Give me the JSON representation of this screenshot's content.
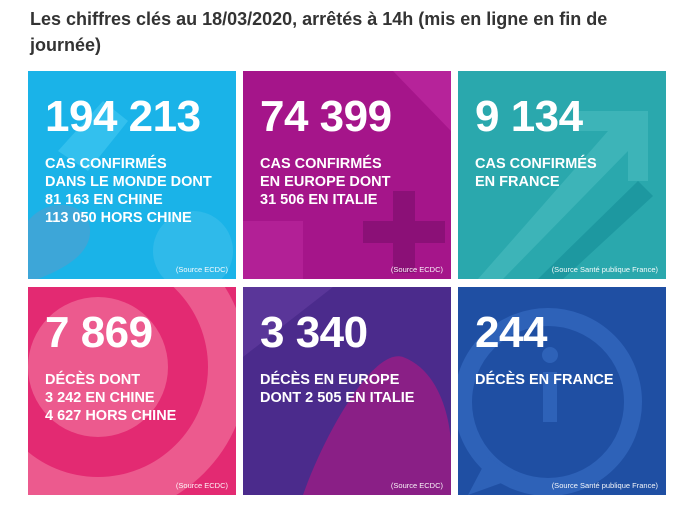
{
  "heading": {
    "line1": "Les chiffres clés au 18/03/2020, arrêtés à 14h (mis en ligne en fin de",
    "line2": "journée)"
  },
  "tiles": [
    {
      "number": "194 213",
      "lines": [
        "CAS CONFIRMÉS",
        "DANS LE MONDE DONT",
        "81 163 EN CHINE",
        "113 050 HORS CHINE"
      ],
      "source": "(Source ECDC)",
      "color": "#1ab3e8"
    },
    {
      "number": "74 399",
      "lines": [
        "CAS CONFIRMÉS",
        "EN EUROPE DONT",
        "31 506 EN ITALIE"
      ],
      "source": "(Source ECDC)",
      "color": "#a5158a"
    },
    {
      "number": "9 134",
      "lines": [
        "CAS CONFIRMÉS",
        "EN FRANCE"
      ],
      "source": "(Source Santé publique France)",
      "color": "#2aa8ad"
    },
    {
      "number": "7 869",
      "lines": [
        "DÉCÈS DONT",
        "3 242 EN CHINE",
        "4 627 HORS CHINE"
      ],
      "source": "(Source ECDC)",
      "color": "#e32a72"
    },
    {
      "number": "3 340",
      "lines": [
        "DÉCÈS EN EUROPE",
        "DONT 2 505 EN ITALIE"
      ],
      "source": "(Source ECDC)",
      "color": "#4b2b8c"
    },
    {
      "number": "244",
      "lines": [
        "DÉCÈS EN FRANCE"
      ],
      "source": "(Source Santé publique France)",
      "color": "#1f4fa3"
    }
  ]
}
